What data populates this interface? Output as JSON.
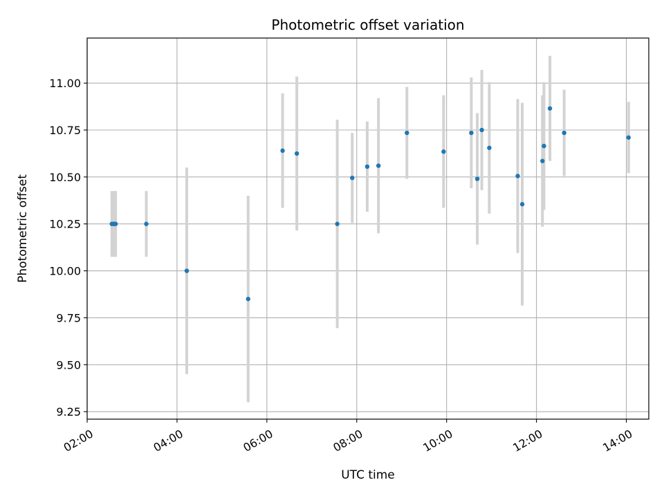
{
  "chart_data": {
    "type": "scatter",
    "title": "Photometric offset variation",
    "xlabel": "UTC time",
    "ylabel": "Photometric offset",
    "grid": true,
    "xlim": [
      "02:00",
      "14:30"
    ],
    "ylim": [
      9.21,
      11.24
    ],
    "x_ticks": [
      "02:00",
      "04:00",
      "06:00",
      "08:00",
      "10:00",
      "12:00",
      "14:00"
    ],
    "y_ticks": [
      "9.25",
      "9.50",
      "9.75",
      "10.00",
      "10.25",
      "10.50",
      "10.75",
      "11.00"
    ],
    "series": [
      {
        "marker_color": "#1f77b4",
        "errorbar_color": "#d3d3d3",
        "points": [
          {
            "x": "02:33",
            "y": 10.25,
            "err": 0.175
          },
          {
            "x": "02:35",
            "y": 10.25,
            "err": 0.175
          },
          {
            "x": "02:37",
            "y": 10.25,
            "err": 0.175
          },
          {
            "x": "02:38",
            "y": 10.25,
            "err": 0.175
          },
          {
            "x": "03:19",
            "y": 10.25,
            "err": 0.175
          },
          {
            "x": "04:13",
            "y": 10.0,
            "err": 0.55
          },
          {
            "x": "05:35",
            "y": 9.85,
            "err": 0.55
          },
          {
            "x": "06:21",
            "y": 10.64,
            "err": 0.305
          },
          {
            "x": "06:40",
            "y": 10.625,
            "err": 0.41
          },
          {
            "x": "07:34",
            "y": 10.25,
            "err": 0.555
          },
          {
            "x": "07:54",
            "y": 10.495,
            "err": 0.24
          },
          {
            "x": "08:14",
            "y": 10.555,
            "err": 0.24
          },
          {
            "x": "08:29",
            "y": 10.56,
            "err": 0.36
          },
          {
            "x": "09:07",
            "y": 10.735,
            "err": 0.245
          },
          {
            "x": "09:56",
            "y": 10.635,
            "err": 0.3
          },
          {
            "x": "10:33",
            "y": 10.735,
            "err": 0.295
          },
          {
            "x": "10:41",
            "y": 10.49,
            "err": 0.35
          },
          {
            "x": "10:47",
            "y": 10.75,
            "err": 0.32
          },
          {
            "x": "10:57",
            "y": 10.655,
            "err": 0.35
          },
          {
            "x": "11:35",
            "y": 10.505,
            "err": 0.41
          },
          {
            "x": "11:41",
            "y": 10.355,
            "err": 0.54
          },
          {
            "x": "12:08",
            "y": 10.585,
            "err": 0.35
          },
          {
            "x": "12:10",
            "y": 10.665,
            "err": 0.34
          },
          {
            "x": "12:18",
            "y": 10.865,
            "err": 0.28
          },
          {
            "x": "12:37",
            "y": 10.735,
            "err": 0.23
          },
          {
            "x": "14:03",
            "y": 10.71,
            "err": 0.19
          }
        ]
      }
    ]
  }
}
